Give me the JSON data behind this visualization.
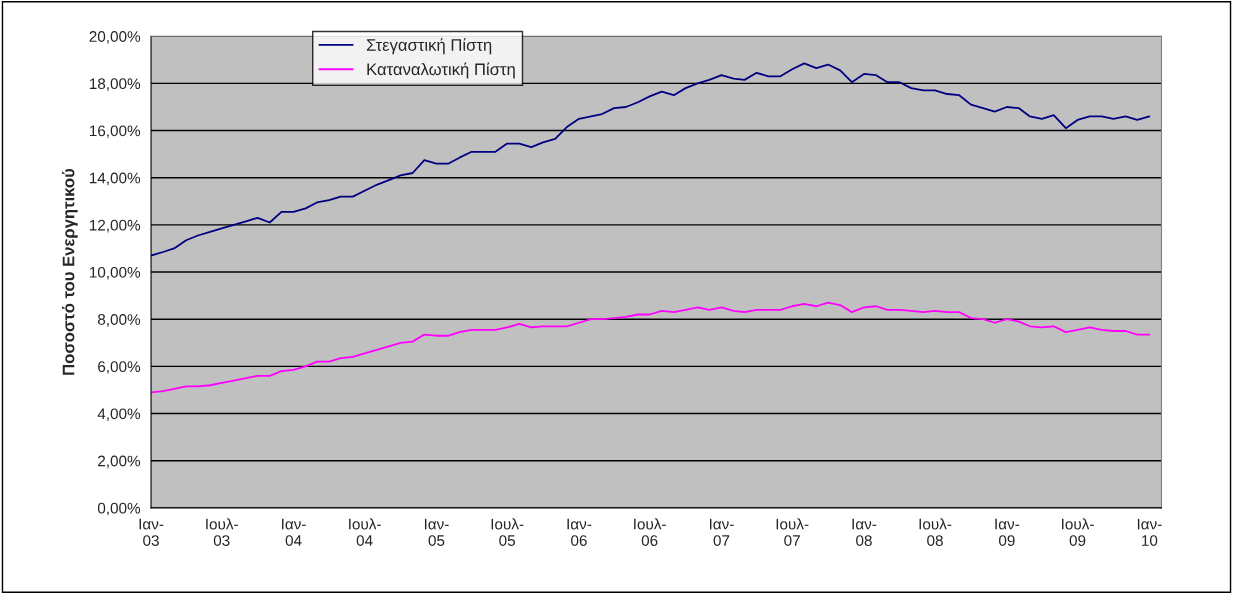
{
  "chart_data": {
    "type": "line",
    "ylabel": "Ποσοστό του Ενεργητικού",
    "x": [
      "2003-01",
      "2003-02",
      "2003-03",
      "2003-04",
      "2003-05",
      "2003-06",
      "2003-07",
      "2003-08",
      "2003-09",
      "2003-10",
      "2003-11",
      "2003-12",
      "2004-01",
      "2004-02",
      "2004-03",
      "2004-04",
      "2004-05",
      "2004-06",
      "2004-07",
      "2004-08",
      "2004-09",
      "2004-10",
      "2004-11",
      "2004-12",
      "2005-01",
      "2005-02",
      "2005-03",
      "2005-04",
      "2005-05",
      "2005-06",
      "2005-07",
      "2005-08",
      "2005-09",
      "2005-10",
      "2005-11",
      "2005-12",
      "2006-01",
      "2006-02",
      "2006-03",
      "2006-04",
      "2006-05",
      "2006-06",
      "2006-07",
      "2006-08",
      "2006-09",
      "2006-10",
      "2006-11",
      "2006-12",
      "2007-01",
      "2007-02",
      "2007-03",
      "2007-04",
      "2007-05",
      "2007-06",
      "2007-07",
      "2007-08",
      "2007-09",
      "2007-10",
      "2007-11",
      "2007-12",
      "2008-01",
      "2008-02",
      "2008-03",
      "2008-04",
      "2008-05",
      "2008-06",
      "2008-07",
      "2008-08",
      "2008-09",
      "2008-10",
      "2008-11",
      "2008-12",
      "2009-01",
      "2009-02",
      "2009-03",
      "2009-04",
      "2009-05",
      "2009-06",
      "2009-07",
      "2009-08",
      "2009-09",
      "2009-10",
      "2009-11",
      "2009-12",
      "2010-01"
    ],
    "series": [
      {
        "name": "Στεγαστική Πίστη",
        "color": "#000080",
        "values": [
          10.7,
          10.85,
          11.0,
          11.35,
          11.55,
          11.7,
          11.85,
          12.0,
          12.15,
          12.3,
          12.1,
          12.55,
          12.55,
          12.7,
          12.95,
          13.05,
          13.2,
          13.2,
          13.45,
          13.7,
          13.9,
          14.1,
          14.2,
          14.75,
          14.6,
          14.6,
          14.85,
          15.1,
          15.1,
          15.1,
          15.45,
          15.45,
          15.3,
          15.5,
          15.65,
          16.15,
          16.5,
          16.6,
          16.7,
          16.95,
          17.0,
          17.2,
          17.45,
          17.65,
          17.5,
          17.8,
          18.0,
          18.15,
          18.35,
          18.2,
          18.15,
          18.45,
          18.3,
          18.3,
          18.6,
          18.85,
          18.65,
          18.8,
          18.55,
          18.05,
          18.4,
          18.35,
          18.05,
          18.05,
          17.8,
          17.7,
          17.7,
          17.55,
          17.5,
          17.1,
          16.95,
          16.8,
          17.0,
          16.95,
          16.6,
          16.5,
          16.65,
          16.1,
          16.45,
          16.6,
          16.6,
          16.5,
          16.6,
          16.45,
          16.6
        ]
      },
      {
        "name": "Καταναλωτική Πίστη",
        "color": "#ff00ff",
        "values": [
          4.9,
          4.95,
          5.05,
          5.15,
          5.15,
          5.2,
          5.3,
          5.4,
          5.5,
          5.6,
          5.6,
          5.8,
          5.85,
          6.0,
          6.2,
          6.2,
          6.35,
          6.4,
          6.55,
          6.7,
          6.85,
          7.0,
          7.05,
          7.35,
          7.3,
          7.3,
          7.45,
          7.55,
          7.55,
          7.55,
          7.65,
          7.8,
          7.65,
          7.7,
          7.7,
          7.7,
          7.85,
          8.0,
          8.0,
          8.05,
          8.1,
          8.2,
          8.2,
          8.35,
          8.3,
          8.4,
          8.5,
          8.4,
          8.5,
          8.35,
          8.3,
          8.4,
          8.4,
          8.4,
          8.55,
          8.65,
          8.55,
          8.7,
          8.6,
          8.3,
          8.5,
          8.55,
          8.4,
          8.4,
          8.35,
          8.3,
          8.35,
          8.3,
          8.3,
          8.05,
          8.0,
          7.85,
          8.0,
          7.9,
          7.7,
          7.65,
          7.7,
          7.45,
          7.55,
          7.65,
          7.55,
          7.5,
          7.5,
          7.35,
          7.35
        ]
      }
    ],
    "xlim": [
      "2003-01",
      "2010-02"
    ],
    "xticks": [
      {
        "value": "2003-01",
        "label": "Ιαν-\n03"
      },
      {
        "value": "2003-07",
        "label": "Ιουλ-\n03"
      },
      {
        "value": "2004-01",
        "label": "Ιαν-\n04"
      },
      {
        "value": "2004-07",
        "label": "Ιουλ-\n04"
      },
      {
        "value": "2005-01",
        "label": "Ιαν-\n05"
      },
      {
        "value": "2005-07",
        "label": "Ιουλ-\n05"
      },
      {
        "value": "2006-01",
        "label": "Ιαν-\n06"
      },
      {
        "value": "2006-07",
        "label": "Ιουλ-\n06"
      },
      {
        "value": "2007-01",
        "label": "Ιαν-\n07"
      },
      {
        "value": "2007-07",
        "label": "Ιουλ-\n07"
      },
      {
        "value": "2008-01",
        "label": "Ιαν-\n08"
      },
      {
        "value": "2008-07",
        "label": "Ιουλ-\n08"
      },
      {
        "value": "2009-01",
        "label": "Ιαν-\n09"
      },
      {
        "value": "2009-07",
        "label": "Ιουλ-\n09"
      },
      {
        "value": "2010-01",
        "label": "Ιαν-\n10"
      }
    ],
    "ylim": [
      0,
      20
    ],
    "yticks": [
      {
        "value": 0,
        "label": "0,00%"
      },
      {
        "value": 2,
        "label": "2,00%"
      },
      {
        "value": 4,
        "label": "4,00%"
      },
      {
        "value": 6,
        "label": "6,00%"
      },
      {
        "value": 8,
        "label": "8,00%"
      },
      {
        "value": 10,
        "label": "10,00%"
      },
      {
        "value": 12,
        "label": "12,00%"
      },
      {
        "value": 14,
        "label": "14,00%"
      },
      {
        "value": 16,
        "label": "16,00%"
      },
      {
        "value": 18,
        "label": "18,00%"
      },
      {
        "value": 20,
        "label": "20,00%"
      }
    ],
    "grid": "y",
    "legend": "top left",
    "marker": "none",
    "line_style": "solid"
  }
}
